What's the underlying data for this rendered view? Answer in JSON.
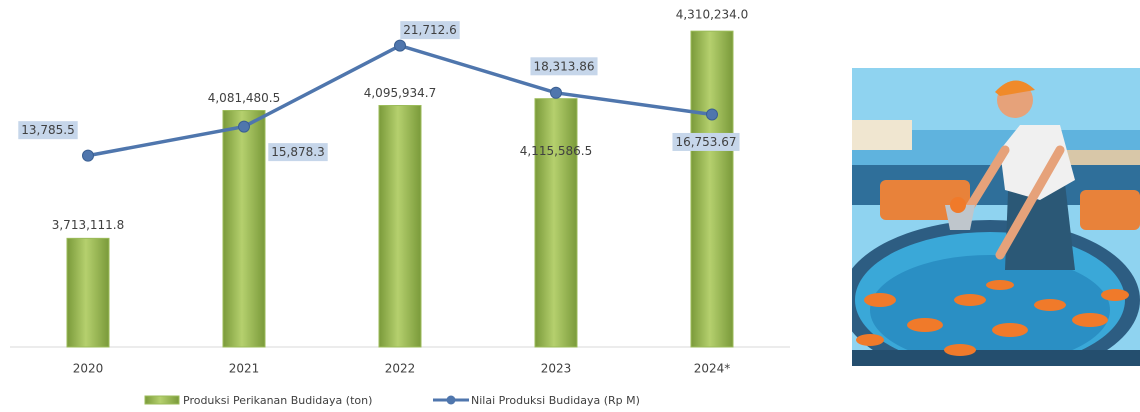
{
  "chart_data": {
    "type": "bar",
    "categories": [
      "2020",
      "2021",
      "2022",
      "2023",
      "2024*"
    ],
    "ylim": [
      3400000,
      4400000
    ],
    "y2lim": [
      0,
      25000
    ],
    "series": [
      {
        "name": "Produksi Perikanan Budidaya (ton)",
        "type": "bar",
        "color": "#9bbb59",
        "values": [
          3713111.8,
          4081480.5,
          4095934.7,
          4115586.5,
          4310234.0
        ],
        "value_labels": [
          "3,713,111.8",
          "4,081,480.5",
          "4,095,934.7",
          "4,115,586.5",
          "4,310,234.0"
        ]
      },
      {
        "name": "Nilai Produksi Budidaya (Rp M)",
        "type": "line",
        "axis": "y2",
        "color": "#4f76ad",
        "values": [
          13785.5,
          15878.3,
          21712.6,
          18313.86,
          16753.67
        ],
        "value_labels": [
          "13,785.5",
          "15,878.3",
          "21,712.6",
          "18,313.86",
          "16,753.67"
        ]
      }
    ]
  }
}
